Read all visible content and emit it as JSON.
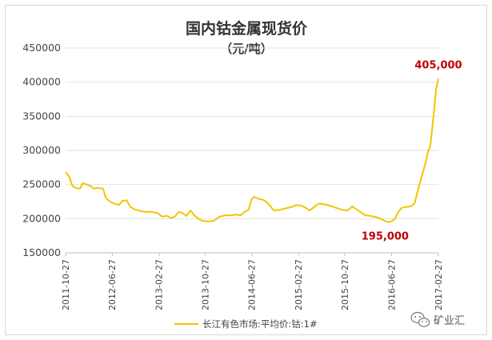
{
  "chart_data": {
    "type": "line",
    "title": "国内钴金属现货价",
    "subtitle": "（元/吨）",
    "ylim": [
      150000,
      450000
    ],
    "yticks": [
      "450000",
      "400000",
      "350000",
      "300000",
      "250000",
      "200000",
      "150000"
    ],
    "yticks_values": [
      450000,
      400000,
      350000,
      300000,
      250000,
      200000,
      150000
    ],
    "xlim": [
      "2011-10-27",
      "2017-02-27"
    ],
    "xticks": [
      "2011-10-27",
      "2012-06-27",
      "2013-02-27",
      "2013-10-27",
      "2014-06-27",
      "2015-02-27",
      "2015-10-27",
      "2016-06-27",
      "2017-02-27"
    ],
    "grid": "horizontal",
    "legend_position": "bottom",
    "series": [
      {
        "name": "长江有色市场:平均价:钴:1#",
        "color": "#f2c500",
        "points": [
          [
            "2011-10-27",
            268000
          ],
          [
            "2011-11-15",
            262000
          ],
          [
            "2011-12-01",
            248000
          ],
          [
            "2011-12-20",
            245000
          ],
          [
            "2012-01-10",
            244000
          ],
          [
            "2012-01-25",
            252000
          ],
          [
            "2012-02-15",
            250000
          ],
          [
            "2012-03-10",
            247000
          ],
          [
            "2012-03-20",
            244000
          ],
          [
            "2012-04-10",
            245000
          ],
          [
            "2012-05-10",
            244000
          ],
          [
            "2012-05-25",
            230000
          ],
          [
            "2012-06-15",
            225000
          ],
          [
            "2012-07-10",
            222000
          ],
          [
            "2012-08-01",
            220000
          ],
          [
            "2012-08-20",
            226000
          ],
          [
            "2012-09-10",
            227000
          ],
          [
            "2012-09-30",
            217000
          ],
          [
            "2012-10-20",
            214000
          ],
          [
            "2012-11-20",
            211000
          ],
          [
            "2012-12-20",
            210000
          ],
          [
            "2013-01-20",
            210000
          ],
          [
            "2013-02-20",
            208000
          ],
          [
            "2013-03-15",
            203000
          ],
          [
            "2013-04-10",
            204000
          ],
          [
            "2013-05-01",
            201000
          ],
          [
            "2013-05-20",
            203000
          ],
          [
            "2013-06-10",
            210000
          ],
          [
            "2013-06-30",
            208000
          ],
          [
            "2013-07-20",
            204000
          ],
          [
            "2013-08-10",
            212000
          ],
          [
            "2013-08-30",
            205000
          ],
          [
            "2013-09-20",
            200000
          ],
          [
            "2013-10-10",
            197000
          ],
          [
            "2013-11-10",
            196000
          ],
          [
            "2013-12-10",
            197000
          ],
          [
            "2014-01-10",
            203000
          ],
          [
            "2014-02-10",
            205000
          ],
          [
            "2014-03-10",
            205000
          ],
          [
            "2014-04-10",
            206000
          ],
          [
            "2014-05-01",
            205000
          ],
          [
            "2014-05-20",
            210000
          ],
          [
            "2014-06-10",
            213000
          ],
          [
            "2014-06-25",
            228000
          ],
          [
            "2014-07-10",
            232000
          ],
          [
            "2014-08-01",
            229000
          ],
          [
            "2014-08-20",
            228000
          ],
          [
            "2014-09-10",
            225000
          ],
          [
            "2014-09-30",
            219000
          ],
          [
            "2014-10-20",
            212000
          ],
          [
            "2014-11-20",
            213000
          ],
          [
            "2014-12-20",
            215000
          ],
          [
            "2015-01-20",
            217000
          ],
          [
            "2015-02-15",
            220000
          ],
          [
            "2015-03-15",
            219000
          ],
          [
            "2015-04-10",
            215000
          ],
          [
            "2015-04-25",
            212000
          ],
          [
            "2015-05-15",
            216000
          ],
          [
            "2015-06-10",
            222000
          ],
          [
            "2015-07-10",
            221000
          ],
          [
            "2015-08-10",
            219000
          ],
          [
            "2015-09-10",
            216000
          ],
          [
            "2015-10-10",
            213000
          ],
          [
            "2015-11-10",
            212000
          ],
          [
            "2015-12-05",
            218000
          ],
          [
            "2015-12-25",
            214000
          ],
          [
            "2016-01-15",
            210000
          ],
          [
            "2016-02-10",
            205000
          ],
          [
            "2016-03-10",
            204000
          ],
          [
            "2016-04-10",
            202000
          ],
          [
            "2016-05-01",
            200000
          ],
          [
            "2016-05-20",
            197000
          ],
          [
            "2016-06-10",
            195000
          ],
          [
            "2016-06-27",
            196000
          ],
          [
            "2016-07-15",
            200000
          ],
          [
            "2016-08-01",
            210000
          ],
          [
            "2016-08-20",
            216000
          ],
          [
            "2016-09-10",
            217000
          ],
          [
            "2016-10-05",
            218000
          ],
          [
            "2016-10-25",
            222000
          ],
          [
            "2016-11-10",
            240000
          ],
          [
            "2016-11-25",
            255000
          ],
          [
            "2016-12-10",
            270000
          ],
          [
            "2016-12-25",
            285000
          ],
          [
            "2017-01-05",
            300000
          ],
          [
            "2017-01-15",
            305000
          ],
          [
            "2017-01-25",
            330000
          ],
          [
            "2017-02-05",
            360000
          ],
          [
            "2017-02-15",
            390000
          ],
          [
            "2017-02-27",
            405000
          ]
        ]
      }
    ],
    "annotations": [
      {
        "text": "405,000",
        "x": "2017-02-27",
        "y": 405000,
        "color": "#c00000"
      },
      {
        "text": "195,000",
        "x": "2016-06-10",
        "y": 195000,
        "color": "#c00000"
      }
    ]
  },
  "watermark": {
    "icon": "wechat-logo-icon",
    "text": "矿业汇"
  }
}
